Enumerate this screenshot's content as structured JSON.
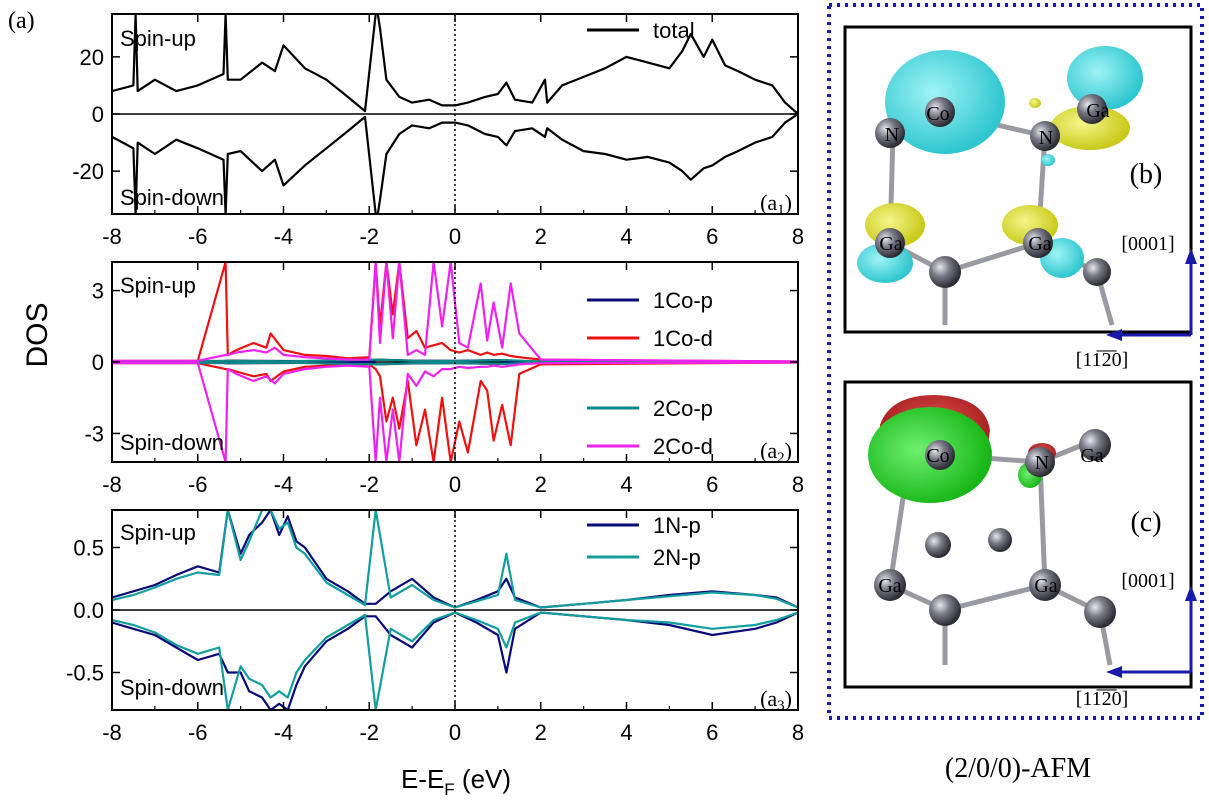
{
  "figure": {
    "panel_label": "(a)",
    "ylabel": "DOS",
    "xlabel_main": "E-E",
    "xlabel_sub": "F",
    "xlabel_unit": " (eV)",
    "caption": "(2/0/0)-AFM"
  },
  "chart_data": [
    {
      "type": "line",
      "panel": "a1",
      "label_main": "(a",
      "label_sub": "1",
      "label_close": ")",
      "xlim": [
        -8,
        8
      ],
      "ylim": [
        -35,
        35
      ],
      "xticks": [
        -8,
        -6,
        -4,
        -2,
        0,
        2,
        4,
        6,
        8
      ],
      "yticks": [
        -20,
        0,
        20
      ],
      "annotations": [
        "Spin-up",
        "Spin-down"
      ],
      "fermi_line_x": 0,
      "zero_line": true,
      "legend_position": "top-right",
      "series": [
        {
          "name": "total",
          "color": "#000000",
          "x": [
            -8,
            -7.5,
            -7.45,
            -7.4,
            -7,
            -6.5,
            -6,
            -5.4,
            -5.35,
            -5.3,
            -5,
            -4.5,
            -4.2,
            -4,
            -3.5,
            -3,
            -2.5,
            -2.1,
            -1.85,
            -1.8,
            -1.75,
            -1.6,
            -1.3,
            -1,
            -0.6,
            -0.3,
            0,
            0.3,
            0.7,
            1,
            1.2,
            1.4,
            1.8,
            2.1,
            2.15,
            2.5,
            3,
            3.5,
            4,
            4.5,
            5,
            5.3,
            5.5,
            5.8,
            6,
            6.3,
            6.6,
            7,
            7.4,
            7.7,
            8
          ],
          "up": [
            8,
            10,
            35,
            8,
            12,
            8,
            10,
            14,
            35,
            12,
            12,
            18,
            15,
            24,
            16,
            12,
            6,
            1,
            35,
            35,
            30,
            12,
            6,
            4,
            5,
            3,
            3,
            4,
            6,
            7,
            11,
            5,
            4,
            12,
            4,
            10,
            13,
            16,
            20,
            18,
            16,
            22,
            28,
            20,
            26,
            17,
            15,
            12,
            10,
            4,
            0
          ],
          "down": [
            -8,
            -12,
            -35,
            -10,
            -14,
            -9,
            -12,
            -16,
            -35,
            -14,
            -13,
            -20,
            -16,
            -25,
            -18,
            -12,
            -6,
            -1,
            -35,
            -35,
            -30,
            -14,
            -7,
            -4,
            -5,
            -3,
            -3,
            -4,
            -7,
            -8,
            -11,
            -6,
            -5,
            -8,
            -5,
            -9,
            -13,
            -14,
            -16,
            -15,
            -17,
            -20,
            -23,
            -19,
            -18,
            -15,
            -13,
            -10,
            -8,
            -3,
            0
          ]
        }
      ]
    },
    {
      "type": "line",
      "panel": "a2",
      "label_main": "(a",
      "label_sub": "2",
      "label_close": ")",
      "xlim": [
        -8,
        8
      ],
      "ylim": [
        -4.2,
        4.2
      ],
      "xticks": [
        -8,
        -6,
        -4,
        -2,
        0,
        2,
        4,
        6,
        8
      ],
      "yticks": [
        -3,
        0,
        3
      ],
      "annotations": [
        "Spin-up",
        "Spin-down"
      ],
      "fermi_line_x": 0,
      "legend_position": "right",
      "series": [
        {
          "name": "1Co-p",
          "color": "#0a0a78",
          "x": [
            -8,
            -5.5,
            -5.3,
            -4,
            -2,
            -1.8,
            -1,
            0,
            1,
            1.2,
            2,
            8
          ],
          "up": [
            0.02,
            0.02,
            0.06,
            0.04,
            0.02,
            0.1,
            0.06,
            0.05,
            0.08,
            0.05,
            0.02,
            0.01
          ],
          "down": [
            -0.02,
            -0.02,
            -0.06,
            -0.04,
            -0.02,
            -0.1,
            -0.06,
            -0.05,
            -0.08,
            -0.05,
            -0.02,
            -0.01
          ]
        },
        {
          "name": "1Co-d",
          "color": "#ee1111",
          "x": [
            -8,
            -6,
            -5.35,
            -5.3,
            -5.1,
            -4.7,
            -4.4,
            -4.3,
            -4,
            -3.5,
            -3,
            -2.5,
            -2,
            -1.85,
            -1.75,
            -1.6,
            -1.45,
            -1.3,
            -1.1,
            -0.9,
            -0.7,
            -0.5,
            -0.3,
            -0.1,
            0.1,
            0.3,
            0.6,
            0.75,
            0.9,
            1.1,
            1.3,
            1.5,
            2,
            8
          ],
          "up": [
            0.05,
            0.05,
            4.2,
            0.3,
            0.5,
            0.8,
            0.6,
            1.2,
            0.5,
            0.3,
            0.25,
            0.15,
            0.2,
            4.2,
            1.5,
            4.2,
            2,
            4.2,
            1,
            1.3,
            0.6,
            0.7,
            0.8,
            0.5,
            0.4,
            0.5,
            0.3,
            0.4,
            0.3,
            0.35,
            0.25,
            0.2,
            0.1,
            0.02
          ],
          "down": [
            -0.05,
            -0.05,
            -0.3,
            -0.3,
            -0.4,
            -0.6,
            -0.5,
            -0.8,
            -0.4,
            -0.2,
            -0.15,
            -0.1,
            -0.1,
            -0.3,
            -0.6,
            -2.5,
            -1.5,
            -2.8,
            -0.8,
            -3.5,
            -2,
            -4.2,
            -1.5,
            -4.2,
            -2.5,
            -3.8,
            -0.8,
            -1.2,
            -3.3,
            -1.8,
            -3.5,
            -0.5,
            -0.1,
            -0.02
          ]
        },
        {
          "name": "2Co-p",
          "color": "#118888",
          "x": [
            -8,
            -5.3,
            -4,
            -1.8,
            -1,
            0,
            1.2,
            2,
            8
          ],
          "up": [
            0.02,
            0.05,
            0.03,
            0.1,
            0.05,
            0.04,
            0.08,
            0.02,
            0.01
          ],
          "down": [
            -0.02,
            -0.05,
            -0.03,
            -0.1,
            -0.05,
            -0.04,
            -0.08,
            -0.02,
            -0.01
          ]
        },
        {
          "name": "2Co-d",
          "color": "#ee22ee",
          "x": [
            -8,
            -6,
            -5.35,
            -5.3,
            -5.1,
            -4.7,
            -4.4,
            -4.2,
            -4,
            -3.5,
            -3,
            -2.5,
            -2,
            -1.85,
            -1.75,
            -1.6,
            -1.45,
            -1.3,
            -1.1,
            -0.9,
            -0.7,
            -0.5,
            -0.3,
            -0.1,
            0.1,
            0.3,
            0.6,
            0.75,
            0.9,
            1.1,
            1.3,
            1.5,
            2,
            8
          ],
          "up": [
            0.05,
            0.05,
            0.3,
            0.3,
            0.4,
            0.5,
            0.4,
            0.6,
            0.3,
            0.2,
            0.15,
            0.1,
            0.1,
            4.2,
            0.8,
            4.2,
            1,
            4.2,
            0.3,
            0.5,
            0.3,
            4.2,
            1.5,
            4.2,
            0.8,
            0.6,
            3.3,
            0.9,
            2.5,
            0.6,
            3.3,
            1.2,
            0.1,
            0.02
          ],
          "down": [
            -0.05,
            -0.05,
            -4.2,
            -0.3,
            -0.5,
            -0.8,
            -0.6,
            -0.9,
            -0.5,
            -0.3,
            -0.2,
            -0.15,
            -0.2,
            -4.2,
            -1.5,
            -4.2,
            -2,
            -4.2,
            -0.5,
            -1,
            -0.4,
            -0.6,
            -0.3,
            -0.3,
            -0.2,
            -0.25,
            -0.2,
            -0.2,
            -0.15,
            -0.2,
            -0.15,
            -0.1,
            -0.05,
            -0.02
          ]
        }
      ]
    },
    {
      "type": "line",
      "panel": "a3",
      "label_main": "(a",
      "label_sub": "3",
      "label_close": ")",
      "xlim": [
        -8,
        8
      ],
      "ylim": [
        -0.8,
        0.8
      ],
      "xticks": [
        -8,
        -6,
        -4,
        -2,
        0,
        2,
        4,
        6,
        8
      ],
      "yticks": [
        -0.5,
        0.0,
        0.5
      ],
      "ytick_labels": [
        "-0.5",
        "0.0",
        "0.5"
      ],
      "xlabel": "E-EF (eV)",
      "annotations": [
        "Spin-up",
        "Spin-down"
      ],
      "fermi_line_x": 0,
      "legend_position": "top-right",
      "series": [
        {
          "name": "1N-p",
          "color": "#0a0a78",
          "x": [
            -8,
            -7.5,
            -7,
            -6.5,
            -6,
            -5.5,
            -5.3,
            -5,
            -4.8,
            -4.5,
            -4.3,
            -4.1,
            -3.9,
            -3.7,
            -3.5,
            -3,
            -2.5,
            -2.1,
            -1.85,
            -1.5,
            -1,
            -0.5,
            0,
            0.5,
            1,
            1.2,
            1.4,
            2,
            3,
            4,
            5,
            6,
            7,
            7.5,
            8
          ],
          "up": [
            0.1,
            0.15,
            0.2,
            0.28,
            0.35,
            0.3,
            0.8,
            0.45,
            0.6,
            0.7,
            0.8,
            0.6,
            0.75,
            0.55,
            0.5,
            0.25,
            0.15,
            0.05,
            0.05,
            0.15,
            0.25,
            0.1,
            0.02,
            0.08,
            0.15,
            0.25,
            0.1,
            0.02,
            0.05,
            0.08,
            0.12,
            0.15,
            0.12,
            0.1,
            0.02
          ],
          "down": [
            -0.1,
            -0.15,
            -0.2,
            -0.3,
            -0.4,
            -0.35,
            -0.5,
            -0.5,
            -0.65,
            -0.7,
            -0.8,
            -0.75,
            -0.8,
            -0.6,
            -0.45,
            -0.25,
            -0.15,
            -0.05,
            -0.05,
            -0.2,
            -0.3,
            -0.1,
            -0.02,
            -0.1,
            -0.2,
            -0.5,
            -0.15,
            -0.02,
            -0.05,
            -0.08,
            -0.12,
            -0.2,
            -0.15,
            -0.1,
            -0.02
          ]
        },
        {
          "name": "2N-p",
          "color": "#129e9e",
          "x": [
            -8,
            -7.5,
            -7,
            -6.5,
            -6,
            -5.5,
            -5.3,
            -5,
            -4.8,
            -4.5,
            -4.3,
            -4.1,
            -3.9,
            -3.7,
            -3.5,
            -3,
            -2.5,
            -2.1,
            -1.85,
            -1.5,
            -1,
            -0.5,
            0,
            0.5,
            1,
            1.2,
            1.4,
            2,
            3,
            4,
            5,
            6,
            7,
            7.5,
            8
          ],
          "up": [
            0.08,
            0.12,
            0.18,
            0.25,
            0.3,
            0.28,
            0.8,
            0.4,
            0.55,
            0.8,
            0.8,
            0.65,
            0.7,
            0.5,
            0.45,
            0.22,
            0.12,
            0.04,
            0.8,
            0.1,
            0.2,
            0.08,
            0.02,
            0.07,
            0.12,
            0.45,
            0.08,
            0.02,
            0.05,
            0.08,
            0.11,
            0.14,
            0.12,
            0.09,
            0.02
          ],
          "down": [
            -0.08,
            -0.12,
            -0.18,
            -0.28,
            -0.35,
            -0.3,
            -0.8,
            -0.45,
            -0.55,
            -0.6,
            -0.7,
            -0.65,
            -0.7,
            -0.5,
            -0.4,
            -0.22,
            -0.12,
            -0.04,
            -0.8,
            -0.15,
            -0.25,
            -0.08,
            -0.02,
            -0.08,
            -0.15,
            -0.3,
            -0.1,
            -0.02,
            -0.05,
            -0.08,
            -0.1,
            -0.15,
            -0.12,
            -0.08,
            -0.02
          ]
        }
      ]
    }
  ],
  "structures": {
    "b": {
      "label": "(b)",
      "atoms": [
        "Co",
        "Ga",
        "N",
        "N",
        "Ga",
        "Ga"
      ],
      "axis_up": "[0001]",
      "axis_left": "[11̅2̅0]"
    },
    "c": {
      "label": "(c)",
      "atoms": [
        "Co",
        "Ga",
        "N",
        "Ga",
        "Ga"
      ],
      "axis_up": "[0001]",
      "axis_left": "[11̅2̅0]"
    }
  },
  "colors": {
    "spin_up_density_b": "#3dd6dc",
    "spin_down_density_b": "#e6e62a",
    "density_c_green": "#22cc22",
    "density_c_red": "#cc2222",
    "border_dotted": "#1a1aaa",
    "axis_arrow": "#1a1aaa"
  }
}
